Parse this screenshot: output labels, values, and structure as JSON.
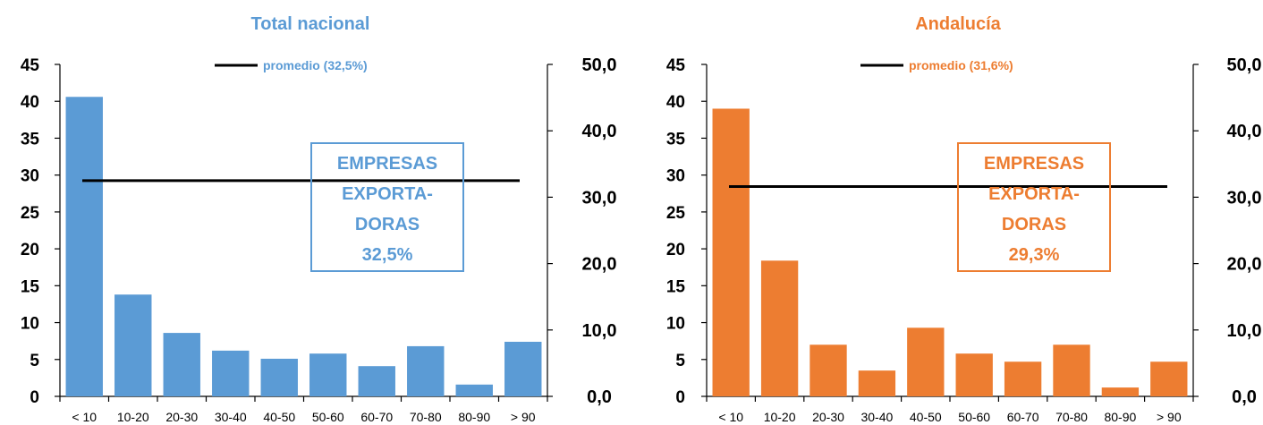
{
  "chart_data": [
    {
      "type": "bar",
      "title": "Total nacional",
      "color": "#5B9BD5",
      "categories": [
        "< 10",
        "10-20",
        "20-30",
        "30-40",
        "40-50",
        "50-60",
        "60-70",
        "70-80",
        "80-90",
        "> 90"
      ],
      "values": [
        40.6,
        13.8,
        8.6,
        6.2,
        5.1,
        5.8,
        4.1,
        6.8,
        1.6,
        7.4
      ],
      "ylim": [
        0,
        45
      ],
      "yticks": [
        "0",
        "5",
        "10",
        "15",
        "20",
        "25",
        "30",
        "35",
        "40",
        "45"
      ],
      "y2lim": [
        0,
        50
      ],
      "y2ticks": [
        "0,0",
        "10,0",
        "20,0",
        "30,0",
        "40,0",
        "50,0"
      ],
      "average_line": {
        "value": 32.5,
        "axis": "secondary",
        "label": "promedio (32,5%)"
      },
      "annotation_box": [
        "EMPRESAS",
        "EXPORTA-",
        "DORAS",
        "32,5%"
      ]
    },
    {
      "type": "bar",
      "title": "Andalucía",
      "color": "#ED7D31",
      "categories": [
        "< 10",
        "10-20",
        "20-30",
        "30-40",
        "40-50",
        "50-60",
        "60-70",
        "70-80",
        "80-90",
        "> 90"
      ],
      "values": [
        39.0,
        18.4,
        7.0,
        3.5,
        9.3,
        5.8,
        4.7,
        7.0,
        1.2,
        4.7
      ],
      "ylim": [
        0,
        45
      ],
      "yticks": [
        "0",
        "5",
        "10",
        "15",
        "20",
        "25",
        "30",
        "35",
        "40",
        "45"
      ],
      "y2lim": [
        0,
        50
      ],
      "y2ticks": [
        "0,0",
        "10,0",
        "20,0",
        "30,0",
        "40,0",
        "50,0"
      ],
      "average_line": {
        "value": 31.6,
        "axis": "secondary",
        "label": "promedio (31,6%)"
      },
      "annotation_box": [
        "EMPRESAS",
        "EXPORTA-",
        "DORAS",
        "29,3%"
      ]
    }
  ]
}
